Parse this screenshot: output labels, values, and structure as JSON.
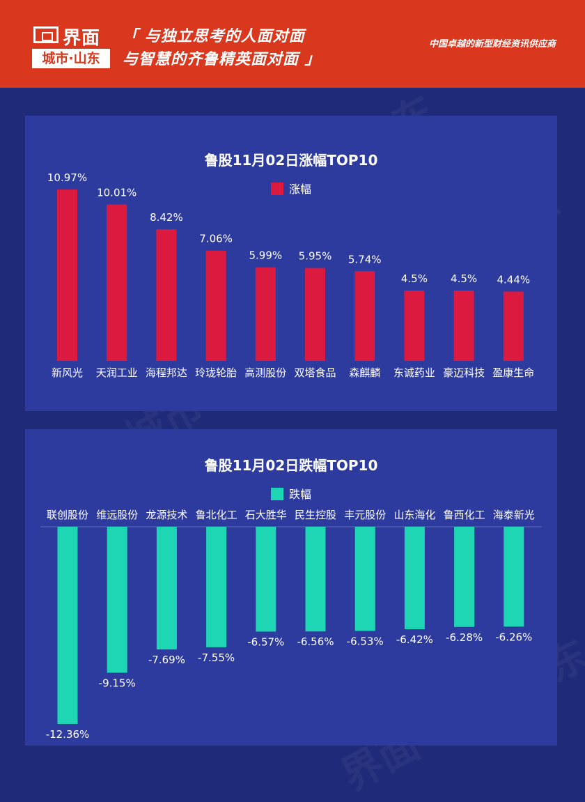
{
  "header": {
    "logo_main": "界面",
    "logo_sub": "城市·山东",
    "slogan_line1": "「 与独立思考的人面对面",
    "slogan_line2": "与智慧的齐鲁精英面对面 」",
    "tagline": "中国卓越的新型财经资讯供应商"
  },
  "watermark": "界面 城市·山东",
  "colors": {
    "header_bg": "#d9381e",
    "page_bg": "#1f2a78",
    "panel_bg": "#2e3b9e",
    "gain": "#dc1a3f",
    "loss": "#1fd6b4"
  },
  "chart_data": [
    {
      "type": "bar",
      "title": "鲁股11月02日涨幅TOP10",
      "legend": "涨幅",
      "categories": [
        "新风光",
        "天润工业",
        "海程邦达",
        "玲珑轮胎",
        "高测股份",
        "双塔食品",
        "森麒麟",
        "东诚药业",
        "豪迈科技",
        "盈康生命"
      ],
      "values": [
        10.97,
        10.01,
        8.42,
        7.06,
        5.99,
        5.95,
        5.74,
        4.5,
        4.5,
        4.44
      ],
      "labels": [
        "10.97%",
        "10.01%",
        "8.42%",
        "7.06%",
        "5.99%",
        "5.95%",
        "5.74%",
        "4.5%",
        "4.5%",
        "4.44%"
      ],
      "ylim": [
        0,
        11
      ]
    },
    {
      "type": "bar",
      "title": "鲁股11月02日跌幅TOP10",
      "legend": "跌幅",
      "categories": [
        "联创股份",
        "维远股份",
        "龙源技术",
        "鲁北化工",
        "石大胜华",
        "民生控股",
        "丰元股份",
        "山东海化",
        "鲁西化工",
        "海泰新光"
      ],
      "values": [
        -12.36,
        -9.15,
        -7.69,
        -7.55,
        -6.57,
        -6.56,
        -6.53,
        -6.42,
        -6.28,
        -6.26
      ],
      "labels": [
        "-12.36%",
        "-9.15%",
        "-7.69%",
        "-7.55%",
        "-6.57%",
        "-6.56%",
        "-6.53%",
        "-6.42%",
        "-6.28%",
        "-6.26%"
      ],
      "ylim": [
        -12.36,
        0
      ]
    }
  ]
}
